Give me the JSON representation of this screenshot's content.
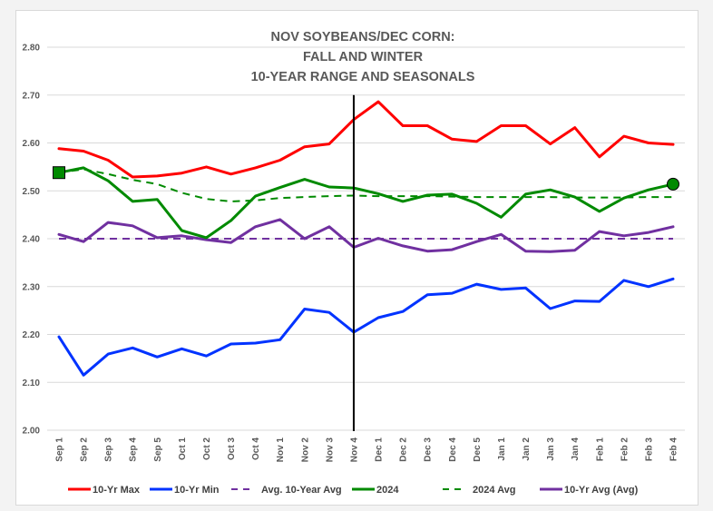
{
  "chart_data": {
    "type": "line",
    "title": [
      "NOV SOYBEANS/DEC CORN:",
      "FALL AND WINTER",
      "10-YEAR RANGE AND SEASONALS"
    ],
    "xlabel": "",
    "ylabel": "",
    "ylim": [
      2.0,
      2.8
    ],
    "yticks": [
      "2.00",
      "2.10",
      "2.20",
      "2.30",
      "2.40",
      "2.50",
      "2.60",
      "2.70",
      "2.80"
    ],
    "grid": true,
    "legend_position": "bottom",
    "categories": [
      "Sep 1",
      "Sep 2",
      "Sep 3",
      "Sep 4",
      "Sep 5",
      "Oct 1",
      "Oct 2",
      "Oct 3",
      "Oct 4",
      "Nov 1",
      "Nov 2",
      "Nov 3",
      "Nov 4",
      "Dec 1",
      "Dec 2",
      "Dec 3",
      "Dec 4",
      "Dec 5",
      "Jan 1",
      "Jan 2",
      "Jan 3",
      "Jan 4",
      "Feb 1",
      "Feb 2",
      "Feb 3",
      "Feb 4"
    ],
    "vertical_marker_category": "Nov 4",
    "series": [
      {
        "name": "10-Yr Max",
        "color": "#ff0000",
        "dash": false,
        "values": [
          2.588,
          2.583,
          2.564,
          2.529,
          2.531,
          2.537,
          2.55,
          2.535,
          2.548,
          2.564,
          2.592,
          2.598,
          2.649,
          2.686,
          2.636,
          2.636,
          2.608,
          2.603,
          2.636,
          2.636,
          2.598,
          2.632,
          2.571,
          2.614,
          2.6,
          2.597
        ]
      },
      {
        "name": "10-Yr Min",
        "color": "#0033ff",
        "dash": false,
        "values": [
          2.195,
          2.115,
          2.159,
          2.172,
          2.153,
          2.17,
          2.155,
          2.18,
          2.182,
          2.189,
          2.253,
          2.246,
          2.205,
          2.235,
          2.248,
          2.283,
          2.286,
          2.305,
          2.294,
          2.297,
          2.254,
          2.27,
          2.269,
          2.313,
          2.3,
          2.316
        ]
      },
      {
        "name": "Avg. 10-Year Avg",
        "color": "#7030a0",
        "dash": true,
        "values": [
          2.4,
          2.4,
          2.4,
          2.4,
          2.4,
          2.4,
          2.4,
          2.4,
          2.4,
          2.4,
          2.4,
          2.4,
          2.4,
          2.4,
          2.4,
          2.4,
          2.4,
          2.4,
          2.4,
          2.4,
          2.4,
          2.4,
          2.4,
          2.4,
          2.4,
          2.4
        ]
      },
      {
        "name": "2024",
        "color": "#008a00",
        "dash": false,
        "start_marker": "square",
        "end_marker": "circle",
        "values": [
          2.538,
          2.548,
          2.521,
          2.478,
          2.482,
          2.417,
          2.402,
          2.438,
          2.489,
          2.507,
          2.524,
          2.508,
          2.506,
          2.494,
          2.478,
          2.491,
          2.493,
          2.474,
          2.445,
          2.493,
          2.502,
          2.487,
          2.457,
          2.485,
          2.502,
          2.514
        ]
      },
      {
        "name": "2024 Avg",
        "color": "#008a00",
        "dash": true,
        "values": [
          2.538,
          2.545,
          2.535,
          2.523,
          2.514,
          2.496,
          2.483,
          2.478,
          2.48,
          2.485,
          2.487,
          2.489,
          2.49,
          2.489,
          2.489,
          2.489,
          2.488,
          2.487,
          2.487,
          2.487,
          2.487,
          2.486,
          2.486,
          2.486,
          2.487,
          2.487
        ]
      },
      {
        "name": "10-Yr Avg (Avg)",
        "color": "#7030a0",
        "dash": false,
        "values": [
          2.409,
          2.394,
          2.434,
          2.427,
          2.402,
          2.406,
          2.398,
          2.392,
          2.425,
          2.44,
          2.4,
          2.425,
          2.382,
          2.401,
          2.385,
          2.374,
          2.377,
          2.394,
          2.409,
          2.374,
          2.373,
          2.376,
          2.415,
          2.406,
          2.413,
          2.425
        ]
      }
    ]
  }
}
